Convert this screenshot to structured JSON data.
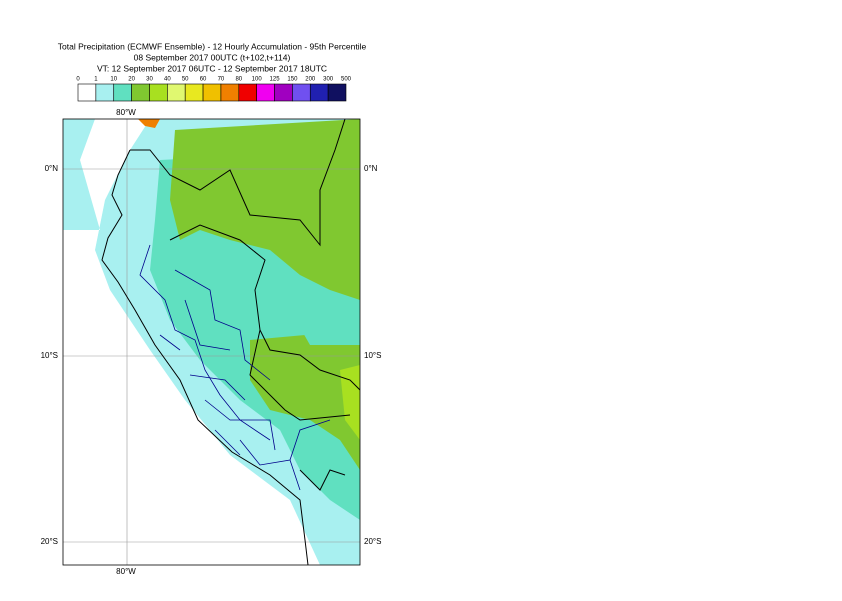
{
  "title": [
    "Total Precipitation (ECMWF Ensemble) - 12 Hourly Accumulation - 95th Percentile",
    "08 September 2017 00UTC (t+102,t+114)",
    "VT: 12 September 2017 06UTC - 12 September 2017 18UTC"
  ],
  "legend": {
    "bounds": [
      0,
      1,
      10,
      20,
      30,
      40,
      50,
      60,
      70,
      80,
      100,
      125,
      150,
      200,
      300,
      500
    ],
    "colors": [
      "#ffffff",
      "#a8f0f0",
      "#60e0c0",
      "#80c830",
      "#a8e020",
      "#e0f870",
      "#e8e820",
      "#f0c000",
      "#f08000",
      "#f00000",
      "#f000f0",
      "#a000c0",
      "#7050f0",
      "#2020b0",
      "#101060"
    ]
  },
  "grid_labels": {
    "lon": [
      "80°W"
    ],
    "lat": [
      "0°N",
      "10°S",
      "20°S"
    ]
  }
}
